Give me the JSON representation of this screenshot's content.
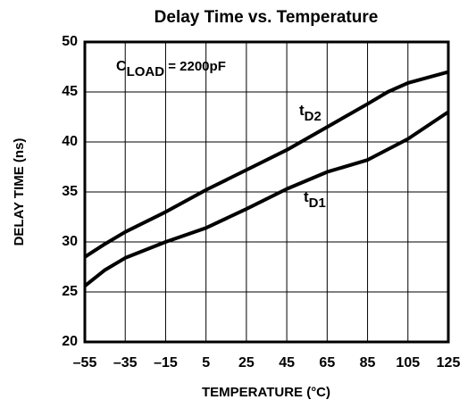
{
  "chart_data": {
    "type": "line",
    "title": "Delay Time vs. Temperature",
    "xlabel": "TEMPERATURE  (°C)",
    "ylabel": "DELAY TIME (ns)",
    "annotation": {
      "main": "C",
      "sub": "LOAD",
      "rest": " = 2200pF"
    },
    "xlim": [
      -55,
      125
    ],
    "xticks": [
      {
        "value": -55,
        "label": "–55"
      },
      {
        "value": -35,
        "label": "–35"
      },
      {
        "value": -15,
        "label": "–15"
      },
      5,
      25,
      45,
      65,
      85,
      105,
      125
    ],
    "ylim": [
      20,
      50
    ],
    "yticks": [
      20,
      25,
      30,
      35,
      40,
      45,
      50
    ],
    "grid": true,
    "series": [
      {
        "label_parts": [
          "t",
          "D2"
        ],
        "color": "#000000",
        "x": [
          -55,
          -45,
          -35,
          -15,
          5,
          25,
          45,
          65,
          85,
          95,
          105,
          125
        ],
        "values": [
          28.5,
          29.8,
          31.0,
          33.0,
          35.2,
          37.2,
          39.2,
          41.5,
          43.8,
          45.0,
          45.9,
          47.0
        ]
      },
      {
        "label_parts": [
          "t",
          "D1"
        ],
        "color": "#000000",
        "x": [
          -55,
          -45,
          -35,
          -15,
          5,
          25,
          45,
          65,
          85,
          105,
          125
        ],
        "values": [
          25.6,
          27.2,
          28.4,
          30.0,
          31.4,
          33.3,
          35.3,
          37.0,
          38.2,
          40.3,
          43.0
        ]
      }
    ]
  }
}
